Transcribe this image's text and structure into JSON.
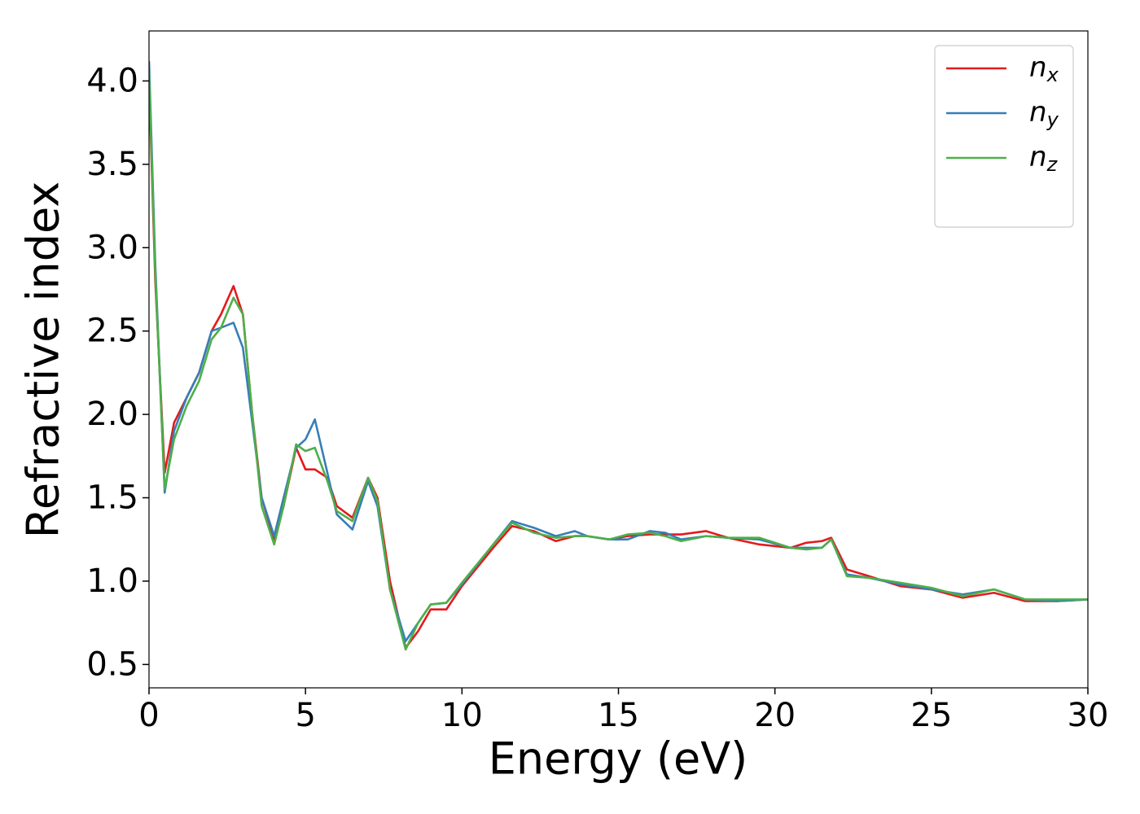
{
  "chart_data": {
    "type": "line",
    "xlabel": "Energy (eV)",
    "ylabel": "Refractive index",
    "x": [
      0,
      0.2,
      0.5,
      0.8,
      1.2,
      1.6,
      2.0,
      2.3,
      2.7,
      3.0,
      3.3,
      3.6,
      4.0,
      4.3,
      4.7,
      5.0,
      5.3,
      5.7,
      6.0,
      6.5,
      7.0,
      7.3,
      7.7,
      8.2,
      8.6,
      9.0,
      9.5,
      10.0,
      11.0,
      11.6,
      12.3,
      13.0,
      13.6,
      14.0,
      14.7,
      15.3,
      16.0,
      16.5,
      17.0,
      17.8,
      18.5,
      19.5,
      20.5,
      21.0,
      21.5,
      21.8,
      22.3,
      23.0,
      24.0,
      25.0,
      26.0,
      27.0,
      28.0,
      29.0,
      30.0
    ],
    "series": [
      {
        "name": "n_x",
        "color": "#e41a1c",
        "values": [
          4.0,
          2.8,
          1.65,
          1.95,
          2.1,
          2.25,
          2.5,
          2.6,
          2.77,
          2.6,
          2.0,
          1.5,
          1.25,
          1.45,
          1.8,
          1.67,
          1.67,
          1.62,
          1.45,
          1.38,
          1.62,
          1.5,
          1.0,
          0.6,
          0.7,
          0.83,
          0.83,
          0.97,
          1.2,
          1.33,
          1.3,
          1.24,
          1.27,
          1.27,
          1.25,
          1.27,
          1.28,
          1.28,
          1.28,
          1.3,
          1.26,
          1.22,
          1.2,
          1.23,
          1.24,
          1.26,
          1.07,
          1.03,
          0.97,
          0.95,
          0.9,
          0.93,
          0.88,
          0.88,
          0.89
        ]
      },
      {
        "name": "n_y",
        "color": "#377eb8",
        "values": [
          4.12,
          2.9,
          1.53,
          1.9,
          2.1,
          2.25,
          2.5,
          2.52,
          2.55,
          2.4,
          1.95,
          1.5,
          1.27,
          1.5,
          1.8,
          1.85,
          1.97,
          1.65,
          1.4,
          1.31,
          1.6,
          1.45,
          0.95,
          0.64,
          0.75,
          0.86,
          0.87,
          0.98,
          1.22,
          1.36,
          1.32,
          1.27,
          1.3,
          1.27,
          1.25,
          1.25,
          1.3,
          1.29,
          1.25,
          1.27,
          1.26,
          1.25,
          1.2,
          1.2,
          1.2,
          1.25,
          1.04,
          1.02,
          0.98,
          0.95,
          0.92,
          0.95,
          0.89,
          0.88,
          0.89
        ]
      },
      {
        "name": "n_z",
        "color": "#4daf4a",
        "values": [
          4.05,
          2.85,
          1.55,
          1.85,
          2.05,
          2.2,
          2.45,
          2.52,
          2.7,
          2.6,
          2.0,
          1.45,
          1.22,
          1.45,
          1.82,
          1.78,
          1.8,
          1.6,
          1.42,
          1.36,
          1.62,
          1.48,
          0.95,
          0.59,
          0.75,
          0.86,
          0.87,
          0.99,
          1.22,
          1.35,
          1.29,
          1.26,
          1.27,
          1.27,
          1.25,
          1.28,
          1.29,
          1.27,
          1.24,
          1.27,
          1.26,
          1.26,
          1.2,
          1.19,
          1.2,
          1.25,
          1.03,
          1.02,
          0.99,
          0.96,
          0.91,
          0.95,
          0.89,
          0.89,
          0.89
        ]
      }
    ],
    "xlim": [
      0,
      30
    ],
    "xticks": [
      0,
      5,
      10,
      15,
      20,
      25,
      30
    ],
    "ylim": [
      0.36,
      4.3
    ],
    "yticks": [
      0.5,
      {
        "value": 1,
        "label": "1.0"
      },
      1.5,
      {
        "value": 2,
        "label": "2.0"
      },
      2.5,
      {
        "value": 3,
        "label": "3.0"
      },
      3.5,
      {
        "value": 4,
        "label": "4.0"
      }
    ],
    "legend": "upper right"
  }
}
